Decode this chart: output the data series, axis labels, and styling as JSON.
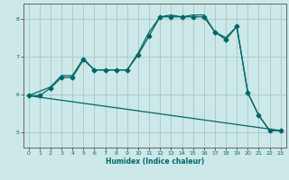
{
  "xlabel": "Humidex (Indice chaleur)",
  "bg_color": "#cce8e8",
  "grid_color": "#aacccc",
  "line_color": "#006666",
  "xlim": [
    -0.5,
    23.5
  ],
  "ylim": [
    4.6,
    8.4
  ],
  "yticks": [
    5,
    6,
    7,
    8
  ],
  "xticks": [
    0,
    1,
    2,
    3,
    4,
    5,
    6,
    7,
    8,
    9,
    10,
    11,
    12,
    13,
    14,
    15,
    16,
    17,
    18,
    19,
    20,
    21,
    22,
    23
  ],
  "series1_x": [
    0,
    1,
    2,
    3,
    4,
    5,
    6,
    7,
    8,
    9,
    10,
    11,
    12,
    13,
    14,
    15,
    16,
    17,
    18,
    19,
    20,
    21,
    22,
    23
  ],
  "series1_y": [
    5.97,
    5.97,
    6.17,
    6.45,
    6.45,
    6.92,
    6.65,
    6.65,
    6.65,
    6.65,
    7.05,
    7.55,
    8.05,
    8.05,
    8.05,
    8.05,
    8.05,
    7.65,
    7.45,
    7.8,
    6.05,
    5.45,
    5.05,
    5.05
  ],
  "series2_x": [
    0,
    2,
    3,
    4,
    5,
    6,
    7,
    8,
    9,
    10,
    11,
    12,
    13,
    14,
    15,
    16,
    17,
    18,
    19,
    20,
    21,
    22,
    23
  ],
  "series2_y": [
    5.97,
    6.2,
    6.5,
    6.5,
    6.95,
    6.65,
    6.65,
    6.65,
    6.65,
    7.1,
    7.65,
    8.05,
    8.1,
    8.05,
    8.1,
    8.1,
    7.65,
    7.5,
    7.8,
    6.05,
    5.45,
    5.05,
    5.05
  ],
  "series3_x": [
    0,
    23
  ],
  "series3_y": [
    5.97,
    5.05
  ]
}
